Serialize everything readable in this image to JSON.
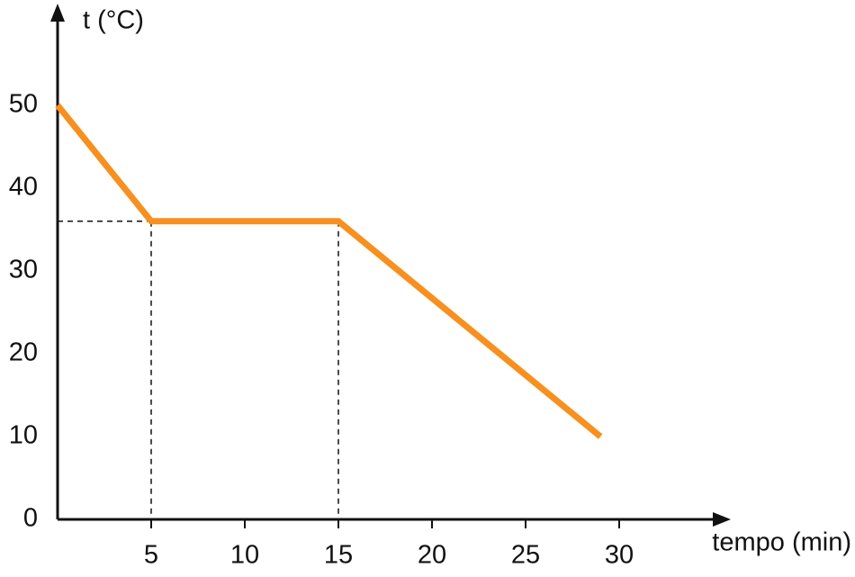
{
  "chart_data": {
    "type": "line",
    "y_label": "t (°C)",
    "x_label": "tempo (min)",
    "x": [
      0,
      5,
      15,
      29
    ],
    "series": [
      {
        "color": "#f7901e",
        "values": [
          50,
          36,
          36,
          10
        ]
      }
    ],
    "xlim": [
      0,
      35
    ],
    "ylim": [
      0,
      60
    ],
    "xticks": [
      5,
      10,
      15,
      20,
      25,
      30
    ],
    "yticks": [
      0,
      10,
      20,
      30,
      40,
      50
    ]
  }
}
